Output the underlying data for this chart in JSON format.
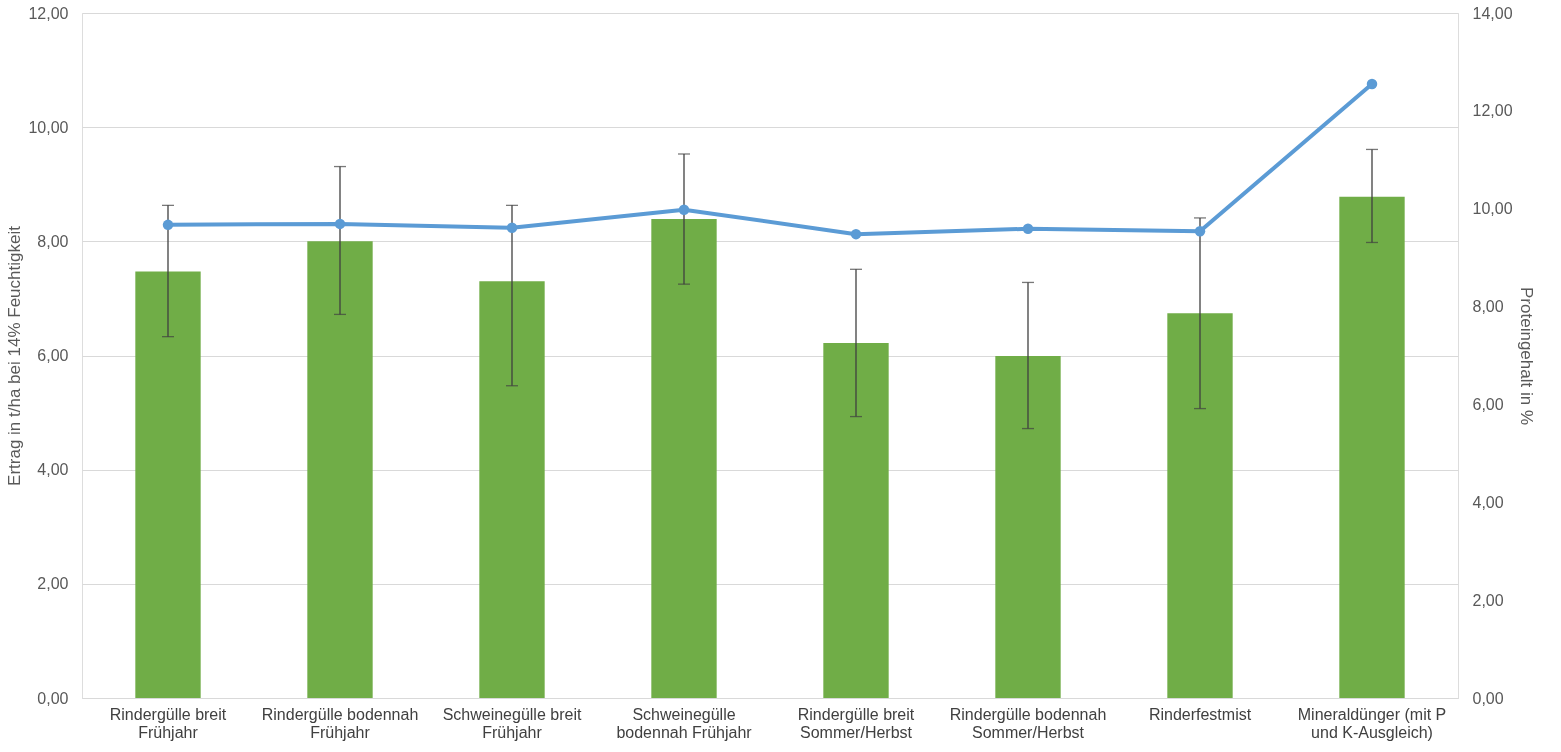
{
  "chart_data": {
    "type": "bar",
    "ylabel": "Ertrag in t/ha bei 14% Feuchtigkeit",
    "y2label": "Proteingehalt in %",
    "categories": [
      "Rindergülle breit Frühjahr",
      "Rindergülle bodennah Frühjahr",
      "Schweinegülle breit Frühjahr",
      "Schweinegülle bodennah Frühjahr",
      "Rindergülle breit Sommer/Herbst",
      "Rindergülle bodennah Sommer/Herbst",
      "Rinderfestmist",
      "Mineraldünger (mit P und K-Ausgleich)"
    ],
    "series": [
      {
        "color": "#70ad47",
        "values": [
          7.47,
          8.0,
          7.3,
          8.39,
          6.22,
          5.99,
          6.74,
          8.78
        ],
        "errors": [
          [
            6.33,
            8.63
          ],
          [
            6.72,
            9.31
          ],
          [
            5.47,
            8.63
          ],
          [
            7.25,
            9.53
          ],
          [
            4.93,
            7.51
          ],
          [
            4.72,
            7.28
          ],
          [
            5.07,
            8.41
          ],
          [
            7.98,
            9.61
          ]
        ]
      },
      {
        "type": "line",
        "axis": "y2",
        "color": "#5b9bd5",
        "marker": "circle",
        "values": [
          9.67,
          9.69,
          9.61,
          9.98,
          9.48,
          9.59,
          9.54,
          12.55
        ]
      }
    ],
    "ylim": [
      0,
      12
    ],
    "yticks": [
      {
        "value": 0,
        "label": "0,00"
      },
      {
        "value": 2,
        "label": "2,00"
      },
      {
        "value": 4,
        "label": "4,00"
      },
      {
        "value": 6,
        "label": "6,00"
      },
      {
        "value": 8,
        "label": "8,00"
      },
      {
        "value": 10,
        "label": "10,00"
      },
      {
        "value": 12,
        "label": "12,00"
      }
    ],
    "y2lim": [
      0,
      14
    ],
    "y2ticks": [
      {
        "value": 0,
        "label": "0,00"
      },
      {
        "value": 2,
        "label": "2,00"
      },
      {
        "value": 4,
        "label": "4,00"
      },
      {
        "value": 6,
        "label": "6,00"
      },
      {
        "value": 8,
        "label": "8,00"
      },
      {
        "value": 10,
        "label": "10,00"
      },
      {
        "value": 12,
        "label": "12,00"
      },
      {
        "value": 14,
        "label": "14,00"
      }
    ],
    "grid": "y"
  }
}
